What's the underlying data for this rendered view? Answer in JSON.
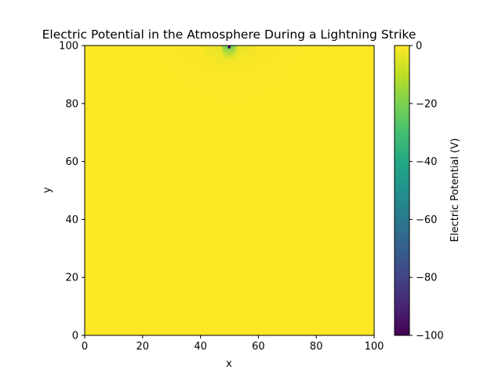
{
  "chart_data": {
    "type": "heatmap",
    "title": "Electric Potential in the Atmosphere During a Lightning Strike",
    "xlabel": "x",
    "ylabel": "y",
    "xlim": [
      0,
      100
    ],
    "ylim": [
      0,
      100
    ],
    "x_ticks": [
      0,
      20,
      40,
      60,
      80,
      100
    ],
    "y_ticks": [
      0,
      20,
      40,
      60,
      80,
      100
    ],
    "colorbar": {
      "label": "Electric Potential (V)",
      "range": [
        -100,
        0
      ],
      "ticks": [
        0,
        -20,
        -40,
        -60,
        -80,
        -100
      ],
      "colormap": "viridis"
    },
    "field": {
      "background_value": 0,
      "source": {
        "x": 50,
        "y": 100,
        "value": -100
      },
      "description_values": [
        {
          "x": 50,
          "y": 99,
          "value": -100
        },
        {
          "x": 50,
          "y": 97,
          "value": -22
        },
        {
          "x": 50,
          "y": 92,
          "value": -6
        },
        {
          "x": 50,
          "y": 82,
          "value": -1.5
        },
        {
          "x": 50,
          "y": 70,
          "value": -0.3
        }
      ]
    }
  },
  "colors": {
    "viridis_low": "#440154",
    "viridis_high": "#fde725"
  }
}
